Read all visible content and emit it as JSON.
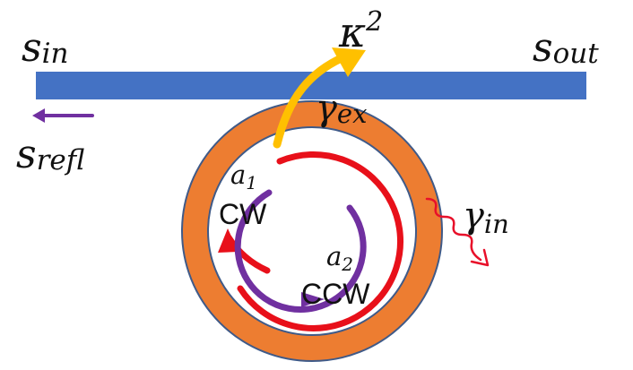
{
  "colors": {
    "waveguide": "#4472C4",
    "ring_outer": "#ED7D31",
    "ring_outline": "#3F5A88",
    "cw_arrow": "#E8101A",
    "ccw_arrow": "#7030A0",
    "coupling_arrow": "#FFC000",
    "loss_arrow": "#E8102A",
    "reflection_arrow": "#7030A0"
  },
  "labels": {
    "s_in": {
      "base": "s",
      "sub": "in"
    },
    "s_out": {
      "base": "s",
      "sub": "out"
    },
    "s_refl": {
      "base": "s",
      "sub": "refl"
    },
    "kappa": {
      "base": "κ",
      "sup": "2"
    },
    "gamma_ex": {
      "base": "γ",
      "sub": "ex"
    },
    "gamma_in": {
      "base": "γ",
      "sub": "in"
    },
    "a1": {
      "base": "a",
      "sub": "1"
    },
    "a2": {
      "base": "a",
      "sub": "2"
    },
    "cw": "CW",
    "ccw": "CCW"
  },
  "icons": {
    "loss": "wavy-arrow-icon",
    "reflection": "left-arrow-icon",
    "coupling": "curved-arrow-icon"
  }
}
